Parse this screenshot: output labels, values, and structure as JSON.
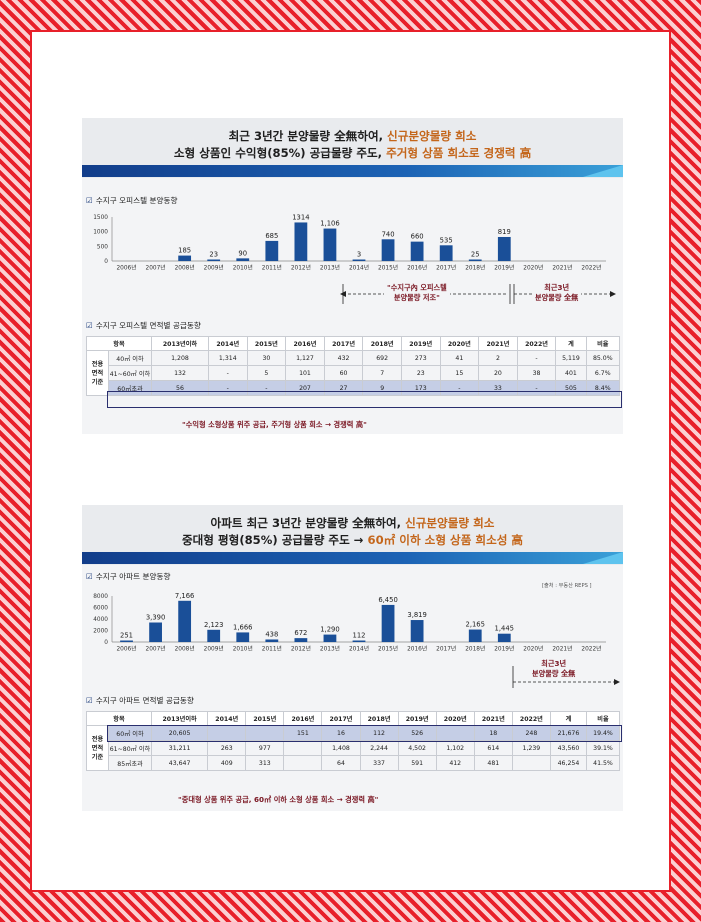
{
  "colors": {
    "bar": "#1a4f98",
    "accent_text": "#c4661b",
    "note": "#7a1622",
    "highlight_row": "#c5cee6",
    "frame": "#e8202a"
  },
  "panel1": {
    "headline_line1_a": "최근 3년간 분양물량 全無하여, ",
    "headline_line1_b": "신규분양물량 희소",
    "headline_line2_a": "소형 상품인 수익형(85%) 공급물량 주도, ",
    "headline_line2_b": "주거형 상품 희소로 경쟁력 高",
    "chart_title": "수지구 오피스텔 분양동향",
    "annotation_a": "\"수지구內 오피스텔",
    "annotation_a2": "분양물량 저조\"",
    "annotation_b": "최근3년",
    "annotation_b2": "분양물량 全無",
    "table_title": "수지구 오피스텔 면적별 공급동향",
    "group_label": [
      "전용",
      "면적",
      "기준"
    ],
    "table": {
      "headers": [
        "항목",
        "2013년이하",
        "2014년",
        "2015년",
        "2016년",
        "2017년",
        "2018년",
        "2019년",
        "2020년",
        "2021년",
        "2022년",
        "계",
        "비율"
      ],
      "rows": [
        {
          "label": "40㎡ 이하",
          "cells": [
            "1,208",
            "1,314",
            "30",
            "1,127",
            "432",
            "692",
            "273",
            "41",
            "2",
            "-",
            "5,119",
            "85.0%"
          ]
        },
        {
          "label": "41~60㎡ 이하",
          "cells": [
            "132",
            "-",
            "5",
            "101",
            "60",
            "7",
            "23",
            "15",
            "20",
            "38",
            "401",
            "6.7%"
          ]
        },
        {
          "label": "60㎡초과",
          "cells": [
            "56",
            "-",
            "-",
            "207",
            "27",
            "9",
            "173",
            "-",
            "33",
            "-",
            "505",
            "8.4%"
          ]
        }
      ]
    },
    "footnote": "\"수익형 소형상품 위주 공급, 주거형 상품 희소 → 경쟁력 高\""
  },
  "panel2": {
    "headline_line1_a": "아파트 최근 3년간 분양물량 全無하여, ",
    "headline_line1_b": "신규분양물량 희소",
    "headline_line2_a": "중대형 평형(85%) 공급물량 주도 → ",
    "headline_line2_b": "60㎡ 이하 소형 상품 희소성 高",
    "chart_title": "수지구 아파트 분양동향",
    "source": "[출처 : 부동산 REPS ]",
    "annotation_b": "최근3년",
    "annotation_b2": "분양물량 全無",
    "table_title": "수지구 아파트 면적별 공급동향",
    "group_label": [
      "전용",
      "면적",
      "기준"
    ],
    "table": {
      "headers": [
        "항목",
        "2013년이하",
        "2014년",
        "2015년",
        "2016년",
        "2017년",
        "2018년",
        "2019년",
        "2020년",
        "2021년",
        "2022년",
        "계",
        "비율"
      ],
      "rows": [
        {
          "label": "60㎡ 이하",
          "cells": [
            "20,605",
            "",
            "",
            "151",
            "16",
            "112",
            "526",
            "",
            "18",
            "248",
            "21,676",
            "19.4%"
          ]
        },
        {
          "label": "61~80㎡ 이하",
          "cells": [
            "31,211",
            "263",
            "977",
            "",
            "1,408",
            "2,244",
            "4,502",
            "1,102",
            "614",
            "1,239",
            "43,560",
            "39.1%"
          ]
        },
        {
          "label": "85㎡초과",
          "cells": [
            "43,647",
            "409",
            "313",
            "",
            "64",
            "337",
            "591",
            "412",
            "481",
            "",
            "46,254",
            "41.5%"
          ]
        }
      ]
    },
    "footnote": "\"중대형 상품 위주 공급, 60㎡ 이하 소형 상품 희소 → 경쟁력 高\""
  },
  "chart_data": [
    {
      "type": "bar",
      "title": "수지구 오피스텔 분양동향",
      "categories": [
        "2006년",
        "2007년",
        "2008년",
        "2009년",
        "2010년",
        "2011년",
        "2012년",
        "2013년",
        "2014년",
        "2015년",
        "2016년",
        "2017년",
        "2018년",
        "2019년",
        "2020년",
        "2021년",
        "2022년"
      ],
      "values": [
        null,
        null,
        185,
        23,
        90,
        685,
        1314,
        1106,
        3,
        740,
        660,
        535,
        25,
        819,
        null,
        null,
        null
      ],
      "labels": [
        "",
        "",
        "185",
        "23",
        "90",
        "685",
        "1314",
        "1,106",
        "3",
        "740",
        "660",
        "535",
        "25",
        "819",
        "",
        "",
        ""
      ],
      "yticks": [
        "0",
        "500",
        "1000",
        "1500"
      ],
      "ylim": [
        0,
        1500
      ],
      "grid": false
    },
    {
      "type": "bar",
      "title": "수지구 아파트 분양동향",
      "categories": [
        "2006년",
        "2007년",
        "2008년",
        "2009년",
        "2010년",
        "2011년",
        "2012년",
        "2013년",
        "2014년",
        "2015년",
        "2016년",
        "2017년",
        "2018년",
        "2019년",
        "2020년",
        "2021년",
        "2022년"
      ],
      "values": [
        251,
        3390,
        7166,
        2123,
        1666,
        438,
        672,
        1290,
        112,
        6450,
        3819,
        null,
        2165,
        1445,
        null,
        null,
        null
      ],
      "labels": [
        "251",
        "3,390",
        "7,166",
        "2,123",
        "1,666",
        "438",
        "672",
        "1,290",
        "112",
        "6,450",
        "3,819",
        "",
        "2,165",
        "1,445",
        "",
        "",
        ""
      ],
      "yticks": [
        "0",
        "2000",
        "4000",
        "6000",
        "8000"
      ],
      "ylim": [
        0,
        8000
      ],
      "grid": false
    }
  ]
}
